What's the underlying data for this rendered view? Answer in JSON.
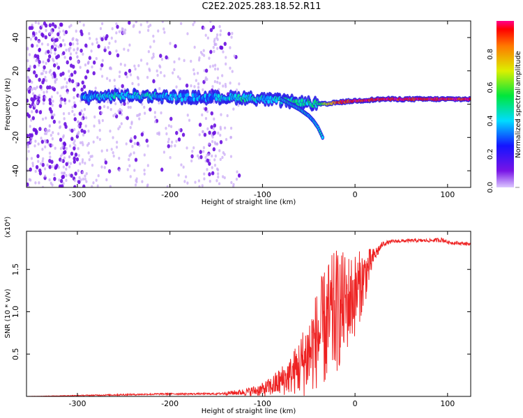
{
  "title": "C2E2.2025.283.18.52.R11",
  "chart_data": [
    {
      "type": "heatmap",
      "title": "C2E2.2025.283.18.52.R11",
      "xlabel": "Height of straight line (km)",
      "ylabel": "Frequency (Hz)",
      "xlim": [
        -355,
        125
      ],
      "ylim": [
        -50,
        50
      ],
      "x_ticks": [
        "-300",
        "-200",
        "-100",
        "0",
        "100"
      ],
      "y_ticks": [
        "40",
        "20",
        "0",
        "-20",
        "-40"
      ],
      "colorbar": {
        "label": "Normalized spectral amplitude",
        "range": [
          0,
          1
        ],
        "ticks": [
          "0.0",
          "0.2",
          "0.4",
          "0.6",
          "0.8"
        ]
      },
      "center_line": {
        "x": [
          -295,
          -260,
          -220,
          -180,
          -150,
          -120,
          -100,
          -80,
          -60,
          -40,
          -30,
          -20,
          0,
          30,
          60,
          90,
          125
        ],
        "freq": [
          4,
          5,
          5,
          4,
          4,
          4,
          3,
          2,
          1,
          0,
          0,
          1,
          2,
          3,
          3,
          3,
          3
        ],
        "amplitude": [
          0.35,
          0.4,
          0.4,
          0.35,
          0.35,
          0.45,
          0.4,
          0.45,
          0.45,
          0.5,
          0.7,
          0.9,
          0.95,
          0.95,
          0.95,
          0.95,
          0.95
        ]
      },
      "branch": {
        "x": [
          -80,
          -70,
          -60,
          -50,
          -45,
          -40,
          -35
        ],
        "freq": [
          3,
          0,
          -3,
          -7,
          -10,
          -14,
          -20
        ]
      }
    },
    {
      "type": "line",
      "xlabel": "Height of straight line (km)",
      "ylabel": "SNR (10 * v/v)",
      "y_scale_label": "(x10⁴)",
      "xlim": [
        -355,
        125
      ],
      "ylim": [
        0,
        1.95
      ],
      "x_ticks": [
        "-300",
        "-200",
        "-100",
        "0",
        "100"
      ],
      "y_ticks": [
        "0.5",
        "1.0",
        "1.5"
      ],
      "series": [
        {
          "name": "SNR",
          "color": "#ee2222",
          "x": [
            -355,
            -300,
            -250,
            -200,
            -150,
            -120,
            -100,
            -90,
            -80,
            -70,
            -60,
            -50,
            -40,
            -30,
            -20,
            -10,
            0,
            10,
            20,
            30,
            40,
            60,
            80,
            95,
            100,
            110,
            125
          ],
          "y": [
            0.0,
            0.01,
            0.02,
            0.03,
            0.03,
            0.05,
            0.08,
            0.12,
            0.18,
            0.25,
            0.35,
            0.5,
            0.7,
            0.85,
            1.0,
            1.1,
            1.2,
            1.4,
            1.65,
            1.8,
            1.83,
            1.84,
            1.84,
            1.85,
            1.82,
            1.81,
            1.8
          ],
          "spread": [
            0.0,
            0.005,
            0.01,
            0.01,
            0.01,
            0.04,
            0.08,
            0.12,
            0.18,
            0.22,
            0.35,
            0.5,
            0.6,
            0.75,
            0.75,
            0.6,
            0.5,
            0.35,
            0.1,
            0.03,
            0.02,
            0.02,
            0.02,
            0.03,
            0.02,
            0.02,
            0.02
          ]
        }
      ]
    }
  ]
}
